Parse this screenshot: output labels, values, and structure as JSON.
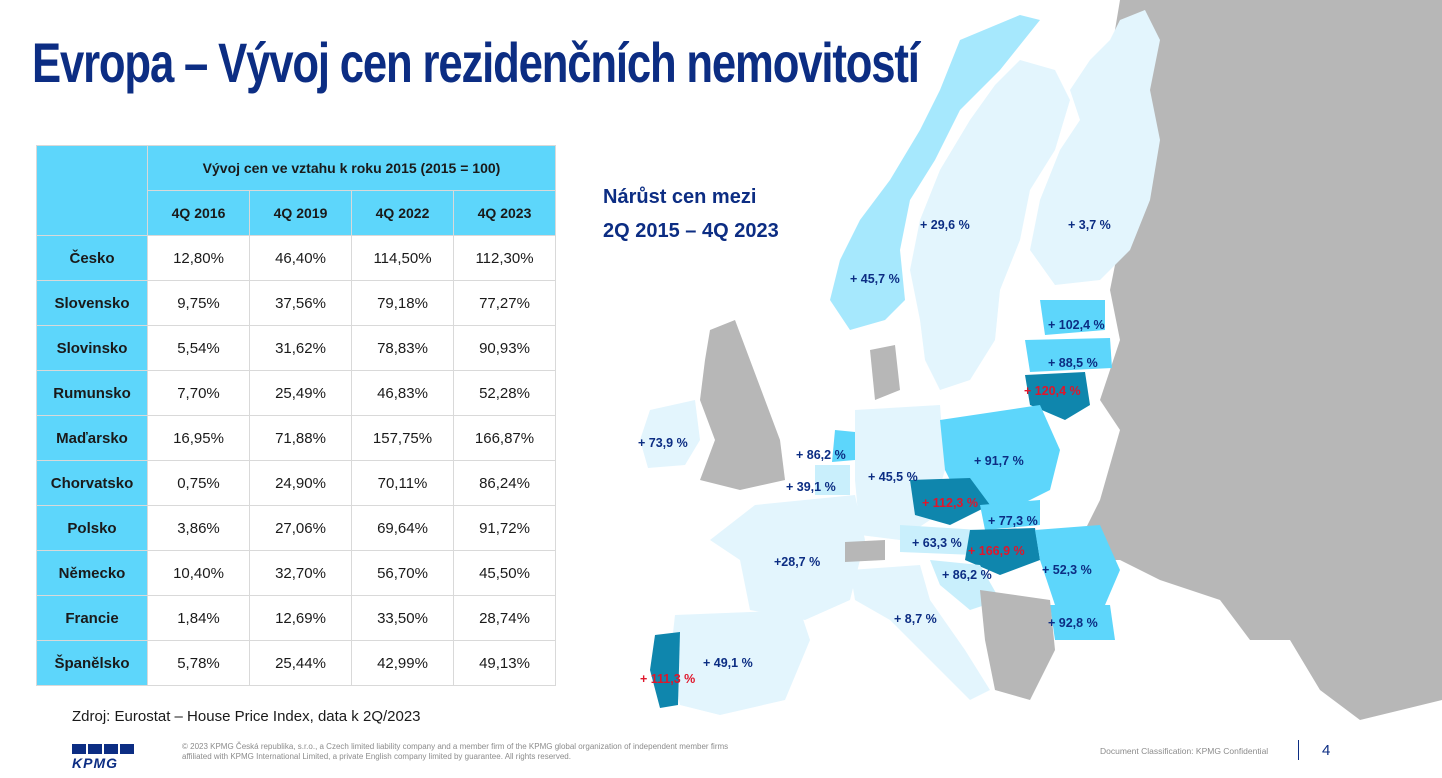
{
  "title": "Evropa – Vývoj cen rezidenčních nemovitostí",
  "table": {
    "header_main": "Vývoj cen ve vztahu k roku 2015 (2015 = 100)",
    "columns": [
      "4Q 2016",
      "4Q 2019",
      "4Q 2022",
      "4Q 2023"
    ],
    "rows": [
      {
        "country": "Česko",
        "values": [
          "12,80%",
          "46,40%",
          "114,50%",
          "112,30%"
        ]
      },
      {
        "country": "Slovensko",
        "values": [
          "9,75%",
          "37,56%",
          "79,18%",
          "77,27%"
        ]
      },
      {
        "country": "Slovinsko",
        "values": [
          "5,54%",
          "31,62%",
          "78,83%",
          "90,93%"
        ]
      },
      {
        "country": "Rumunsko",
        "values": [
          "7,70%",
          "25,49%",
          "46,83%",
          "52,28%"
        ]
      },
      {
        "country": "Maďarsko",
        "values": [
          "16,95%",
          "71,88%",
          "157,75%",
          "166,87%"
        ]
      },
      {
        "country": "Chorvatsko",
        "values": [
          "0,75%",
          "24,90%",
          "70,11%",
          "86,24%"
        ]
      },
      {
        "country": "Polsko",
        "values": [
          "3,86%",
          "27,06%",
          "69,64%",
          "91,72%"
        ]
      },
      {
        "country": "Německo",
        "values": [
          "10,40%",
          "32,70%",
          "56,70%",
          "45,50%"
        ]
      },
      {
        "country": "Francie",
        "values": [
          "1,84%",
          "12,69%",
          "33,50%",
          "28,74%"
        ]
      },
      {
        "country": "Španělsko",
        "values": [
          "5,78%",
          "25,44%",
          "42,99%",
          "49,13%"
        ]
      }
    ]
  },
  "map": {
    "title_line1": "Nárůst cen mezi",
    "title_line2": "2Q 2015 – 4Q 2023",
    "labels": {
      "sweden": "+ 29,6 %",
      "finland": "+ 3,7 %",
      "norway": "+ 45,7 %",
      "estonia": "+ 102,4 %",
      "latvia": "+ 88,5 %",
      "lithuania": "+ 120,4 %",
      "ireland": "+ 73,9 %",
      "netherlands": "+ 86,2 %",
      "belgium": "+ 39,1 %",
      "germany": "+ 45,5 %",
      "poland": "+ 91,7 %",
      "czechia": "+ 112,3 %",
      "slovakia": "+ 77,3 %",
      "austria": "+ 63,3 %",
      "hungary": "+ 166,9 %",
      "slovenia_croatia": "+ 86,2 %",
      "romania": "+ 52,3 %",
      "bulgaria": "+ 92,8 %",
      "france": "+28,7 %",
      "italy": "+ 8,7 %",
      "spain": "+ 49,1 %",
      "portugal": "+ 111,3 %"
    },
    "colors": {
      "land_other": "#b7b7b7",
      "light": "#e3f5fd",
      "medium": "#c9effc",
      "bright": "#5dd6fb",
      "dark": "#0f86ad",
      "sea": "#ffffff"
    }
  },
  "footer": {
    "source": "Zdroj: Eurostat – House Price Index, data k 2Q/2023",
    "legal": "© 2023 KPMG Česká republika, s.r.o., a Czech limited liability company and a member firm of the KPMG global organization of independent member firms affiliated with KPMG International Limited, a private English company limited by guarantee. All rights reserved.",
    "classification": "Document Classification: KPMG Confidential",
    "page_number": "4",
    "logo_text": "KPMG"
  }
}
